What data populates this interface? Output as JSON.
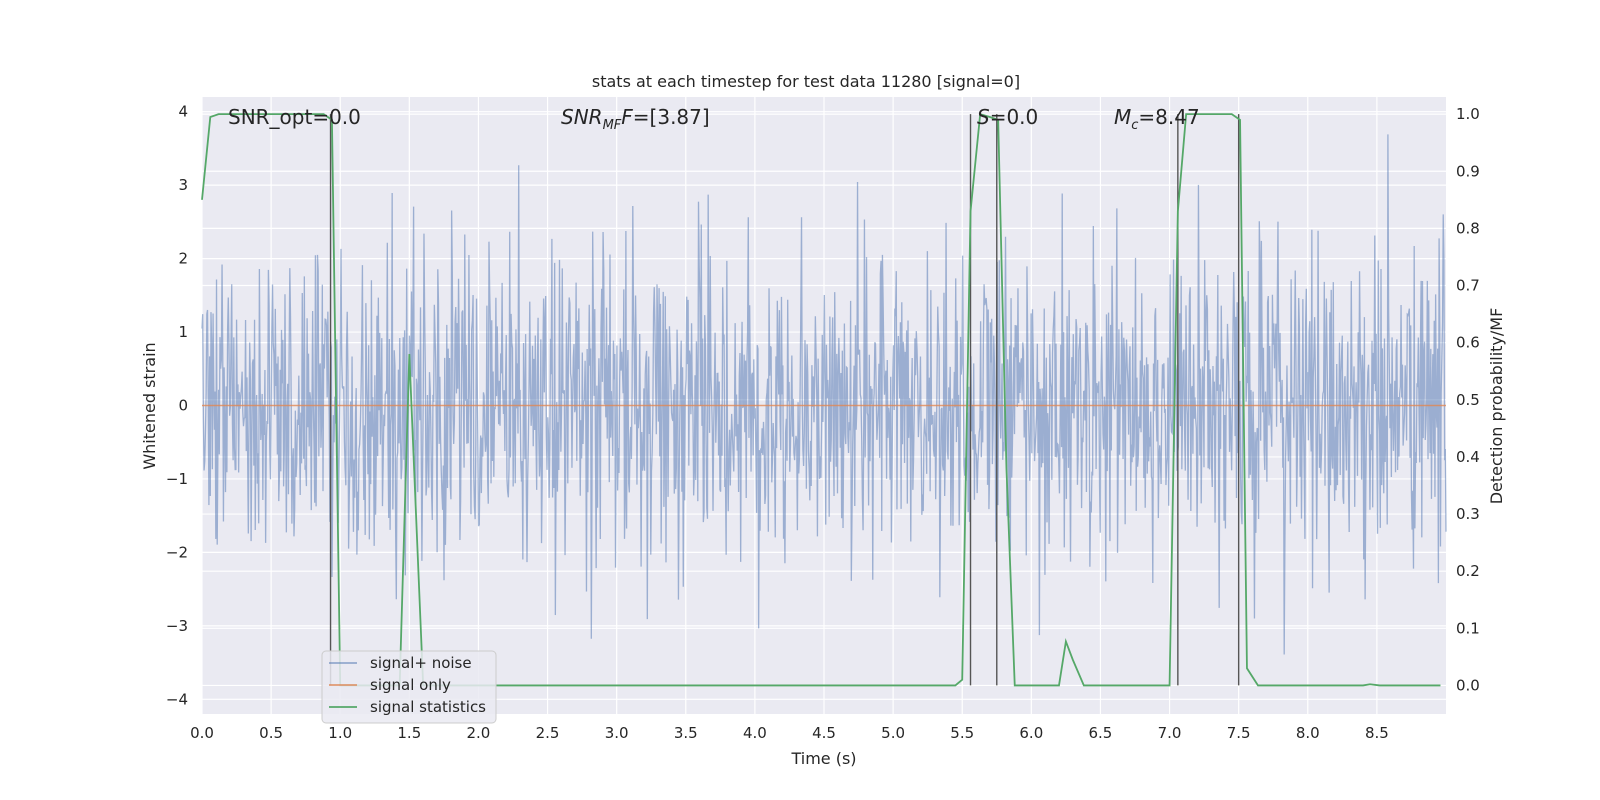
{
  "chart_data": {
    "type": "line",
    "title": "stats at each timestep for test data 11280 [signal=0]",
    "xlabel": "Time (s)",
    "ylabel": "Whitened strain",
    "y2label": "Detection probability/MF",
    "xlim": [
      0.0,
      9.0
    ],
    "ylim": [
      -4.2,
      4.2
    ],
    "y2lim": [
      -0.05,
      1.03
    ],
    "xticks": [
      "0.0",
      "0.5",
      "1.0",
      "1.5",
      "2.0",
      "2.5",
      "3.0",
      "3.5",
      "4.0",
      "4.5",
      "5.0",
      "5.5",
      "6.0",
      "6.5",
      "7.0",
      "7.5",
      "8.0",
      "8.5"
    ],
    "yticks": [
      "4",
      "3",
      "2",
      "1",
      "0",
      "−1",
      "−2",
      "−3",
      "−4"
    ],
    "y2ticks": [
      "1.0",
      "0.9",
      "0.8",
      "0.7",
      "0.6",
      "0.5",
      "0.4",
      "0.3",
      "0.2",
      "0.1",
      "0.0"
    ],
    "grid": true,
    "legend_position": "lower-left",
    "annotations": {
      "snr_opt": "SNR_opt=0.0",
      "snr_mf": "SNR",
      "snr_mf_sub": "MF",
      "snr_mf_val": "=[3.87]",
      "s_label": "S",
      "s_val": "=0.0",
      "mc_label": "M",
      "mc_sub": "c",
      "mc_val": "=8.47"
    },
    "series": [
      {
        "name": "signal+ noise",
        "color": "#4c72b0",
        "axis": "left",
        "note": "whitened strain noise, approx N(0,1), 9 s",
        "envelope_max_positive": 3.9,
        "envelope_max_negative": -3.45
      },
      {
        "name": "signal only",
        "color": "#dd8452",
        "axis": "left",
        "x": [
          0.0,
          9.0
        ],
        "y": [
          0.0,
          0.0
        ]
      },
      {
        "name": "signal statistics",
        "color": "#55a868",
        "axis": "right",
        "x": [
          0.0,
          0.06,
          0.12,
          0.5,
          0.88,
          0.94,
          1.0,
          1.43,
          1.5,
          1.6,
          1.7,
          2.0,
          3.0,
          4.0,
          5.0,
          5.45,
          5.5,
          5.56,
          5.63,
          5.7,
          5.76,
          5.82,
          5.88,
          6.2,
          6.25,
          6.3,
          6.38,
          7.0,
          7.06,
          7.12,
          7.45,
          7.51,
          7.56,
          7.64,
          8.0,
          8.4,
          8.45,
          8.52,
          8.96
        ],
        "y": [
          0.85,
          0.995,
          1.0,
          1.0,
          1.0,
          0.99,
          0.0,
          0.0,
          0.58,
          0.0,
          0.0,
          0.0,
          0.0,
          0.0,
          0.0,
          0.0,
          0.01,
          0.83,
          1.0,
          0.995,
          0.99,
          0.38,
          0.0,
          0.0,
          0.077,
          0.045,
          0.0,
          0.0,
          0.83,
          1.0,
          1.0,
          0.99,
          0.03,
          0.0,
          0.0,
          0.0,
          0.002,
          0.0,
          0.0
        ]
      }
    ],
    "vlines": [
      0.93,
      5.56,
      5.75,
      7.06,
      7.5
    ]
  },
  "colors": {
    "axes_bg": "#eaeaf2",
    "grid": "#ffffff",
    "noise": "#4c72b0",
    "signal": "#dd8452",
    "stats": "#55a868",
    "vline": "#555555"
  }
}
